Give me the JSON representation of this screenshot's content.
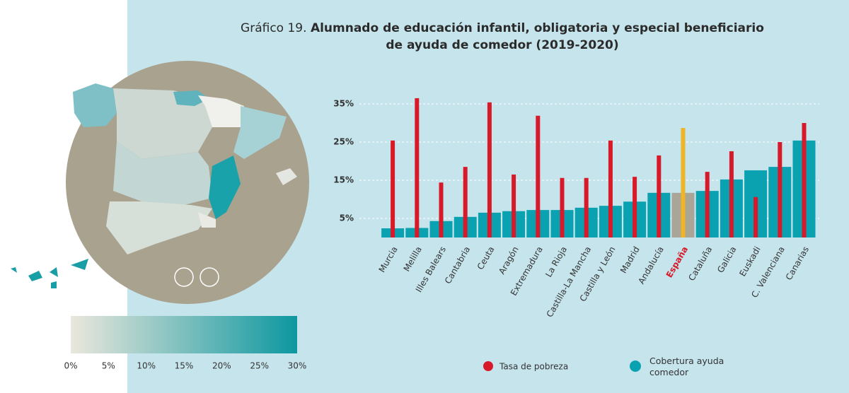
{
  "chart_data": {
    "type": "bar",
    "title_prefix": "Gráfico 19.",
    "title": [
      "Alumnado de educación infantil, obligatoria y especial beneficiario",
      "de ayuda de comedor (2019-2020)"
    ],
    "categories": [
      "Murcia",
      "Melilla",
      "Illes Balears",
      "Cantabria",
      "Ceuta",
      "Aragón",
      "Extremadura",
      "La Rioja",
      "Castilla-La Mancha",
      "Castilla y León",
      "Madrid",
      "Andalucía",
      "España",
      "Cataluña",
      "Galicia",
      "Euskadi",
      "C. Valenciana",
      "Canarias"
    ],
    "series": [
      {
        "name": "Tasa de pobreza",
        "color": "#d7192a",
        "values": [
          25.4,
          36.5,
          14.4,
          18.5,
          35.4,
          16.5,
          31.9,
          15.6,
          15.6,
          25.4,
          15.9,
          21.5,
          28.7,
          17.2,
          22.6,
          10.6,
          25,
          30
        ]
      },
      {
        "name": "Cobertura ayuda comedor",
        "color": "#0aa1b0",
        "values": [
          2.4,
          2.5,
          4.3,
          5.4,
          6.5,
          6.9,
          7.2,
          7.2,
          7.8,
          8.3,
          9.4,
          11.7,
          11.7,
          12.2,
          15.2,
          17.6,
          18.5,
          25.4
        ]
      }
    ],
    "highlight": {
      "category": "España",
      "colors": [
        "#f0b429",
        "#a9a597"
      ],
      "label_color": "#d7192a"
    },
    "ylim": [
      0,
      40
    ],
    "yticks": [
      {
        "value": 5,
        "label": "5%"
      },
      {
        "value": 15,
        "label": "15%"
      },
      {
        "value": 25,
        "label": "25%"
      },
      {
        "value": 35,
        "label": "35%"
      }
    ],
    "grid": true,
    "colorbar": {
      "colors": [
        "#ebe7dc",
        "#0d97a0"
      ],
      "ticks": [
        {
          "value": 0,
          "label": "0%"
        },
        {
          "value": 5,
          "label": "5%"
        },
        {
          "value": 10,
          "label": "10%"
        },
        {
          "value": 15,
          "label": "15%"
        },
        {
          "value": 20,
          "label": "20%"
        },
        {
          "value": 25,
          "label": "25%"
        },
        {
          "value": 30,
          "label": "30%"
        }
      ]
    }
  }
}
